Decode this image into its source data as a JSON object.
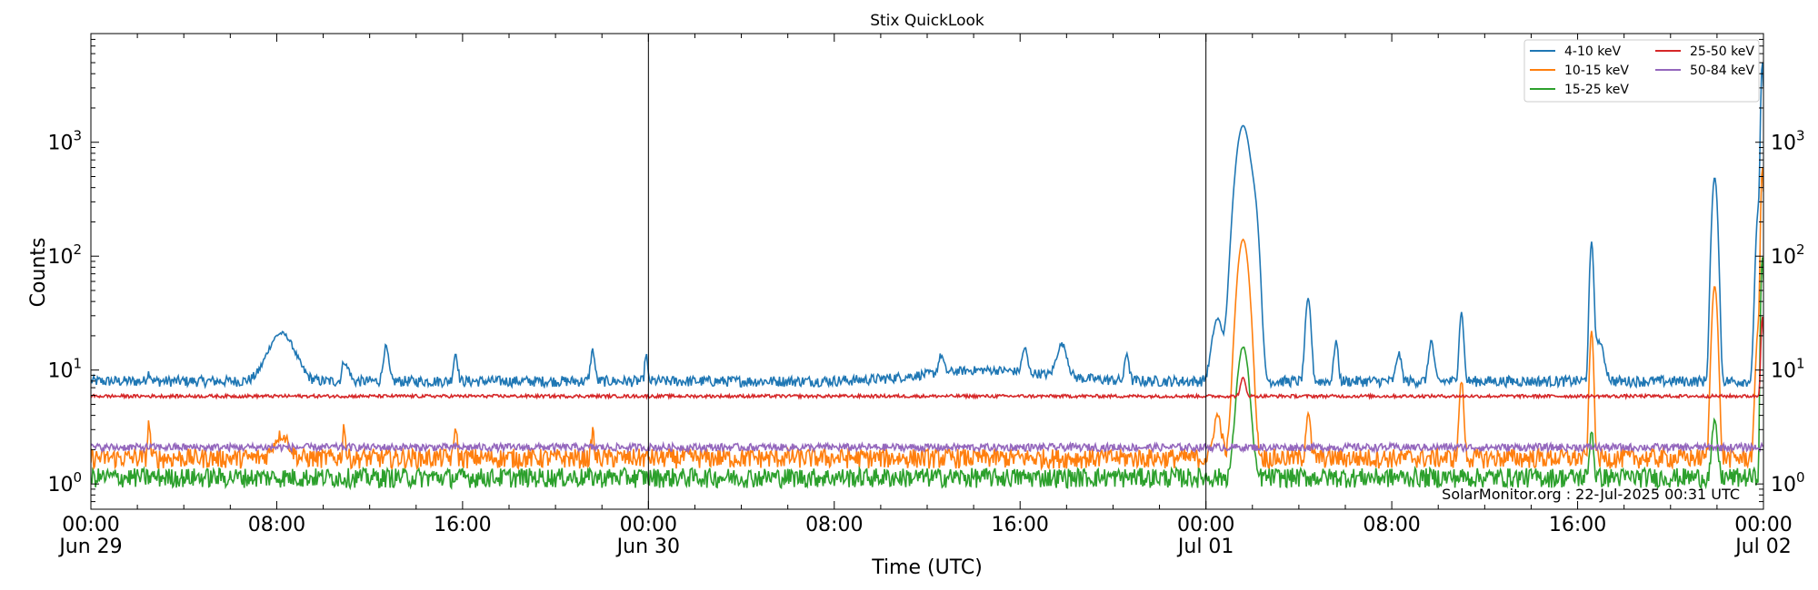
{
  "chart_data": {
    "type": "line",
    "title": "Stix QuickLook",
    "xlabel": "Time (UTC)",
    "ylabel": "Counts",
    "yscale": "log",
    "ylim": [
      0.6,
      9000
    ],
    "xlim": [
      "2025-06-29T00:00",
      "2025-07-02T00:00"
    ],
    "grid": false,
    "legend_position": "top-right",
    "annotation": "SolarMonitor.org : 22-Jul-2025 00:31 UTC",
    "x_tick_labels": [
      {
        "time": "00:00",
        "date": "Jun 29"
      },
      {
        "time": "08:00",
        "date": ""
      },
      {
        "time": "16:00",
        "date": ""
      },
      {
        "time": "00:00",
        "date": "Jun 30"
      },
      {
        "time": "08:00",
        "date": ""
      },
      {
        "time": "16:00",
        "date": ""
      },
      {
        "time": "00:00",
        "date": "Jul 01"
      },
      {
        "time": "08:00",
        "date": ""
      },
      {
        "time": "16:00",
        "date": ""
      },
      {
        "time": "00:00",
        "date": "Jul 02"
      }
    ],
    "y_tick_labels": [
      {
        "value": 1,
        "label": "10",
        "exp": "0"
      },
      {
        "value": 10,
        "label": "10",
        "exp": "1"
      },
      {
        "value": 100,
        "label": "10",
        "exp": "2"
      },
      {
        "value": 1000,
        "label": "10",
        "exp": "3"
      }
    ],
    "day_boundaries": [
      "2025-06-30T00:00",
      "2025-07-01T00:00"
    ],
    "series": [
      {
        "name": "4-10 keV",
        "color": "#1f77b4",
        "baseline": 8.0,
        "noise": 0.05,
        "bumps": [
          [
            2.5,
            9.5,
            0.08
          ],
          [
            8.2,
            21,
            0.5
          ],
          [
            10.9,
            12,
            0.08
          ],
          [
            11.1,
            10,
            0.08
          ],
          [
            12.7,
            16,
            0.1
          ],
          [
            15.7,
            14,
            0.08
          ],
          [
            21.6,
            15,
            0.08
          ],
          [
            23.9,
            14,
            0.05
          ],
          [
            36.6,
            12,
            0.1
          ],
          [
            38.5,
            10,
            2.5
          ],
          [
            40.2,
            14,
            0.1
          ],
          [
            41.8,
            16,
            0.2
          ],
          [
            44.6,
            14,
            0.08
          ],
          [
            48.5,
            28,
            0.2
          ],
          [
            49.6,
            1400,
            0.25
          ],
          [
            50.1,
            200,
            0.15
          ],
          [
            52.4,
            42,
            0.1
          ],
          [
            53.6,
            18,
            0.08
          ],
          [
            56.3,
            14,
            0.1
          ],
          [
            57.7,
            18,
            0.1
          ],
          [
            59,
            32,
            0.08
          ],
          [
            64.6,
            130,
            0.07
          ],
          [
            64.9,
            18,
            0.2
          ],
          [
            69.9,
            490,
            0.1
          ],
          [
            71.8,
            20,
            0.1
          ],
          [
            71.8,
            260,
            0.1
          ],
          [
            71.95,
            5000,
            0.05
          ]
        ]
      },
      {
        "name": "10-15 keV",
        "color": "#ff7f0e",
        "baseline": 1.7,
        "noise": 0.09,
        "bumps": [
          [
            2.5,
            3.5,
            0.05
          ],
          [
            8.2,
            2.7,
            0.3
          ],
          [
            10.9,
            3.3,
            0.05
          ],
          [
            15.7,
            3.3,
            0.05
          ],
          [
            21.6,
            3,
            0.05
          ],
          [
            48.5,
            4,
            0.15
          ],
          [
            49.6,
            140,
            0.2
          ],
          [
            52.4,
            4.3,
            0.08
          ],
          [
            59,
            8,
            0.08
          ],
          [
            64.6,
            22,
            0.07
          ],
          [
            69.9,
            55,
            0.1
          ],
          [
            71.8,
            25,
            0.1
          ],
          [
            71.95,
            600,
            0.05
          ]
        ]
      },
      {
        "name": "15-25 keV",
        "color": "#2ca02c",
        "baseline": 1.15,
        "noise": 0.09,
        "bumps": [
          [
            49.6,
            16,
            0.2
          ],
          [
            64.6,
            3,
            0.07
          ],
          [
            69.9,
            3.5,
            0.1
          ],
          [
            71.95,
            100,
            0.05
          ]
        ]
      },
      {
        "name": "25-50 keV",
        "color": "#d62728",
        "baseline": 5.9,
        "noise": 0.015,
        "bumps": [
          [
            49.6,
            8.5,
            0.1
          ],
          [
            71.95,
            30,
            0.05
          ]
        ]
      },
      {
        "name": "50-84 keV",
        "color": "#9467bd",
        "baseline": 2.1,
        "noise": 0.035,
        "bumps": []
      }
    ]
  }
}
